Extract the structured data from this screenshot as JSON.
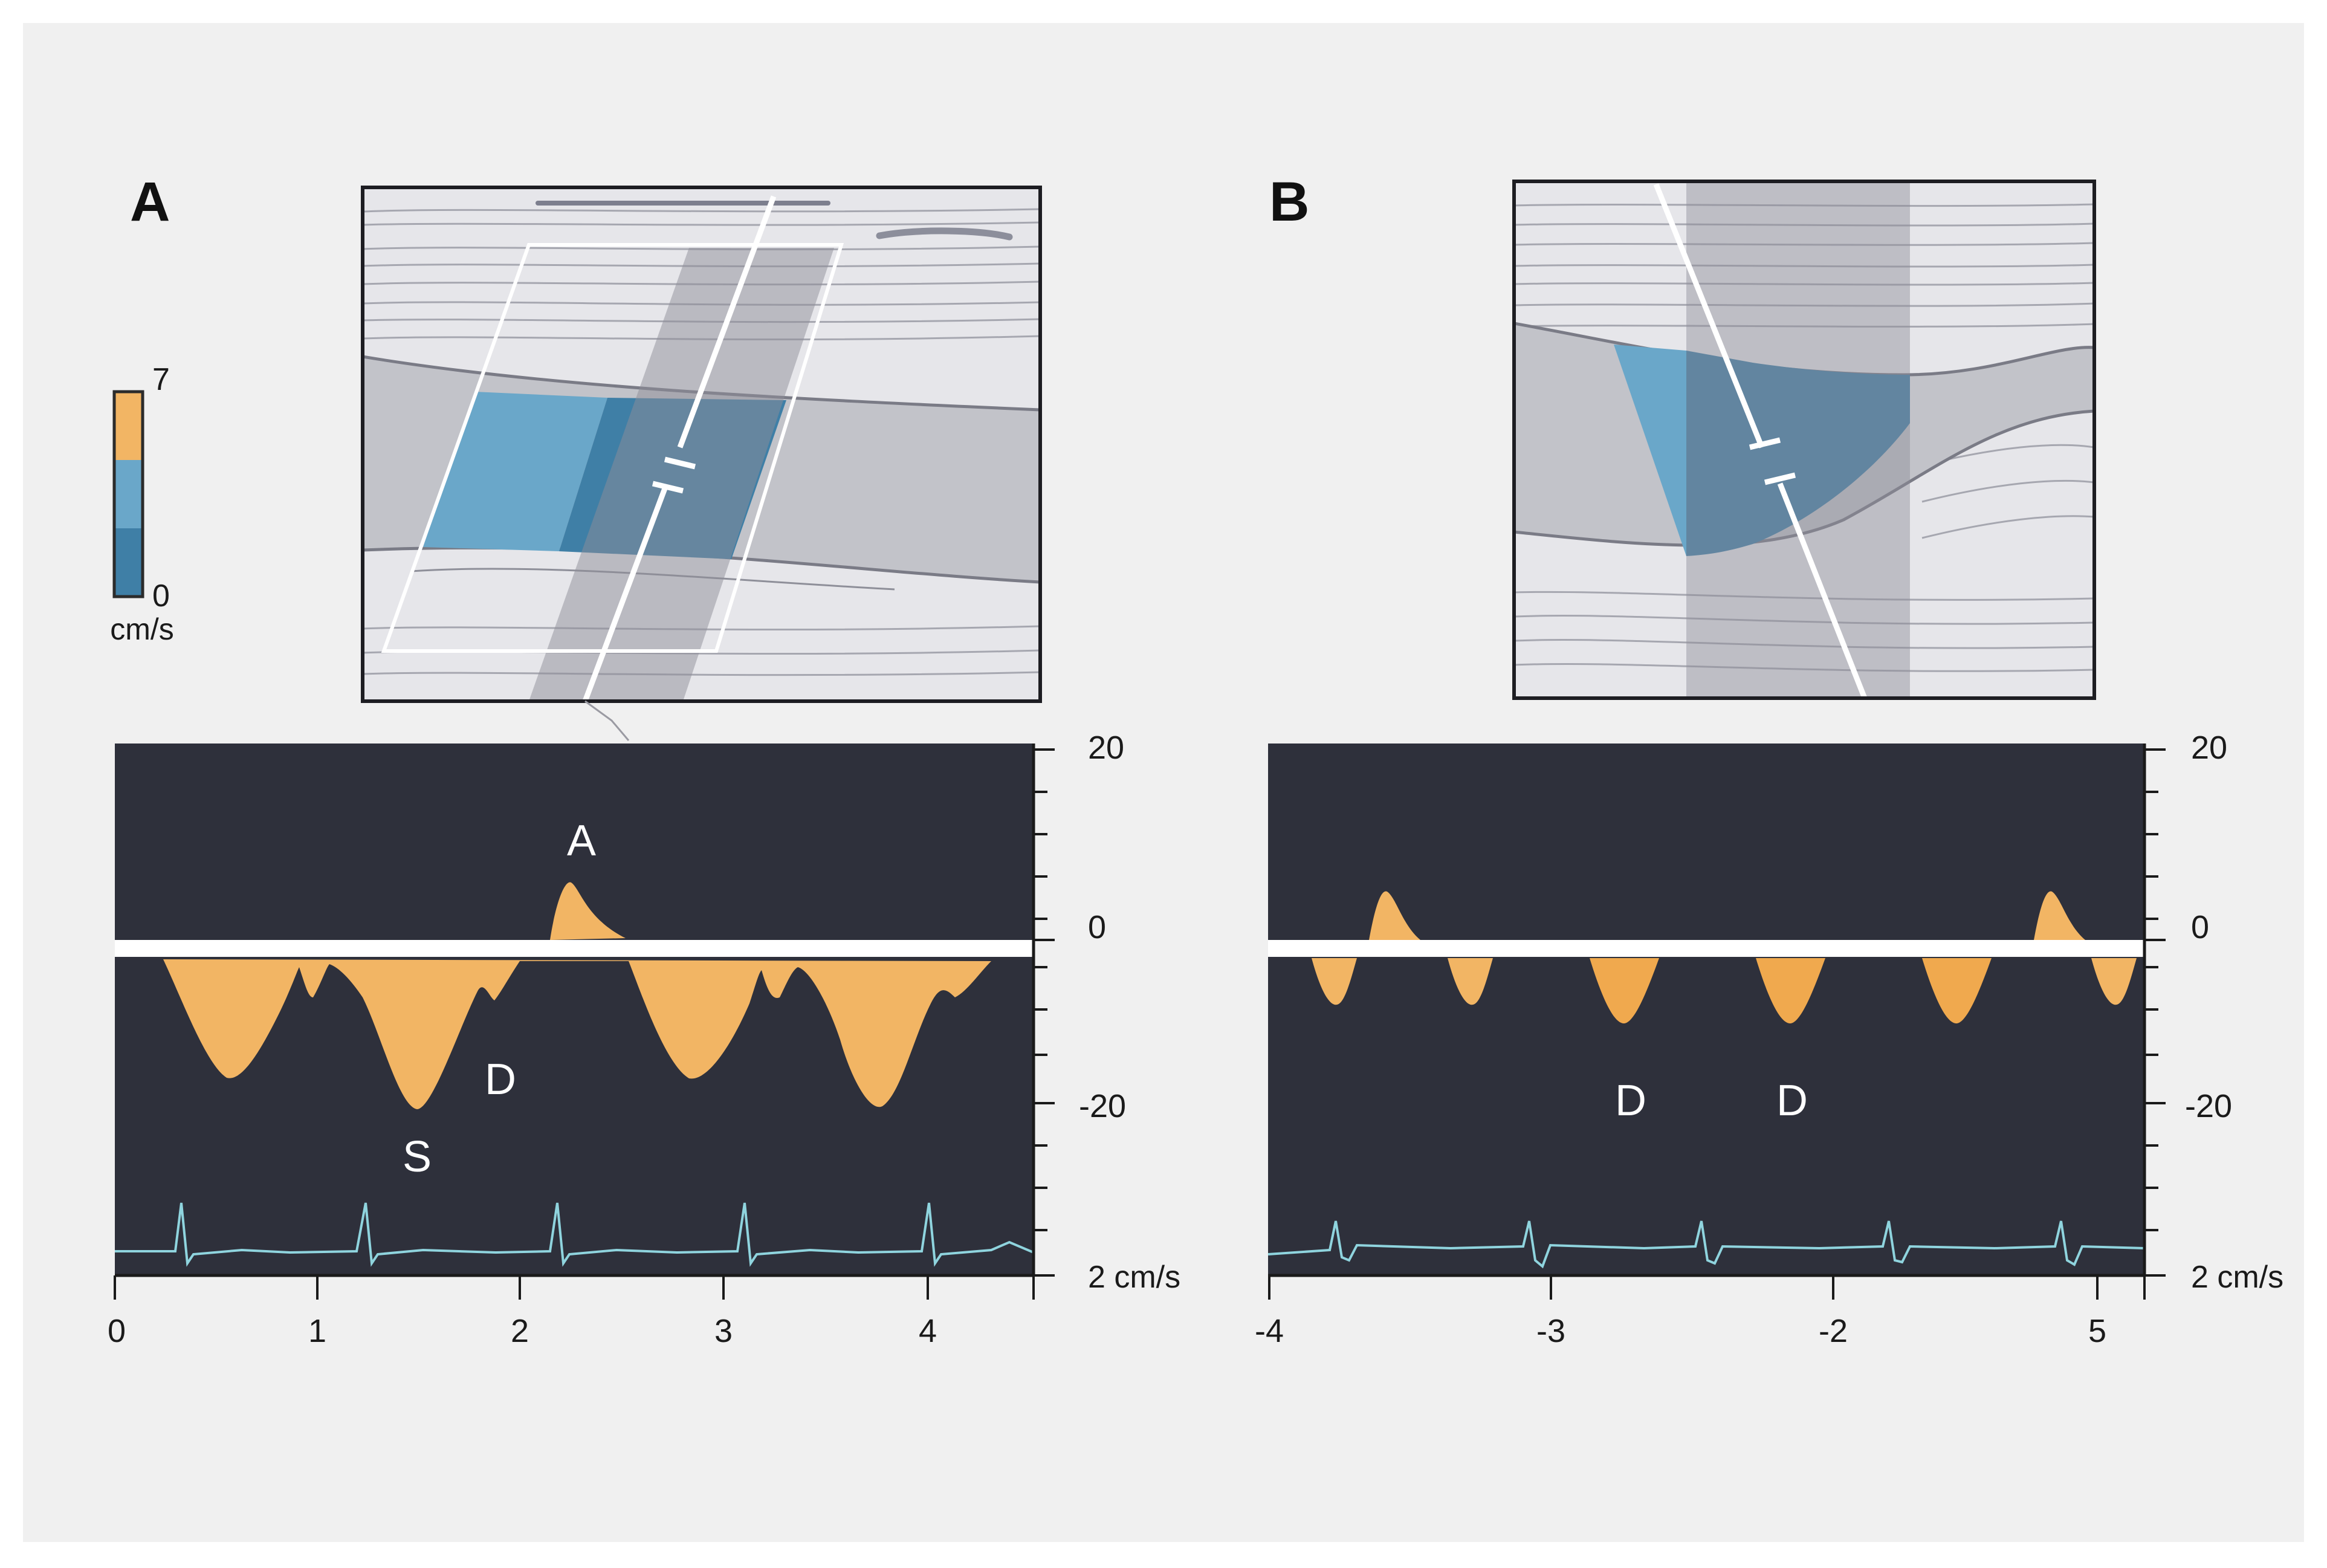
{
  "panels": {
    "a": {
      "label": "A"
    },
    "b": {
      "label": "B"
    }
  },
  "color_scale": {
    "max_label": "7",
    "min_label": "0",
    "unit": "cm/s",
    "colors": [
      "#f2b564",
      "#6aa7c9",
      "#3f7fa6"
    ]
  },
  "colors": {
    "page_bg": "#f0f0f0",
    "spectrum_bg": "#2e303b",
    "waveform_fill": "#f2b564",
    "ecg_trace": "#8fd4de",
    "flow_light": "#6aa7c9",
    "flow_dark": "#3f7fa6",
    "tissue_gray": "#c2c3c9"
  },
  "spectral_a": {
    "y_tick_labels": {
      "top": "20",
      "zero": "0",
      "bottom": "-20"
    },
    "scale_label": "2 cm/s",
    "x_tick_labels": [
      "0",
      "1",
      "2",
      "3",
      "4"
    ],
    "wave_labels": {
      "a_wave": "A",
      "d_wave": "D",
      "s_wave": "S"
    }
  },
  "spectral_b": {
    "y_tick_labels": {
      "top": "20",
      "zero": "0",
      "bottom": "-20"
    },
    "scale_label": "2 cm/s",
    "x_tick_labels": [
      "-4",
      "-3",
      "-2",
      "5"
    ],
    "wave_labels": {
      "d_wave_1": "D",
      "d_wave_2": "D"
    }
  }
}
